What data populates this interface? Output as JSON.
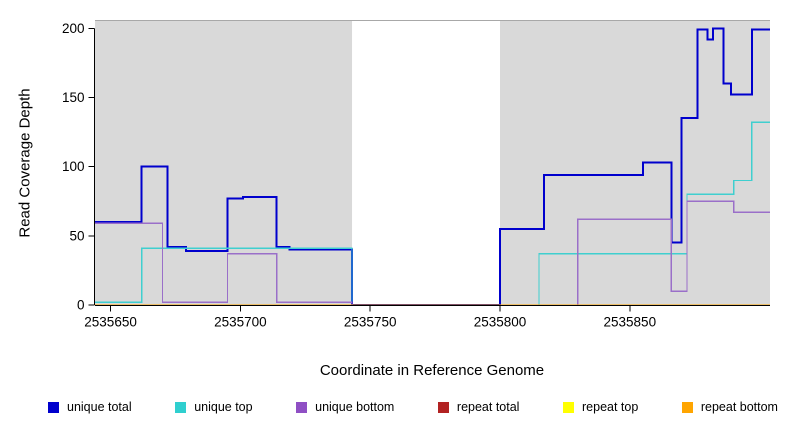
{
  "chart_data": {
    "type": "line",
    "step": true,
    "title": "",
    "xlabel": "Coordinate in Reference Genome",
    "ylabel": "Read Coverage Depth",
    "xlim": [
      2535644,
      2535904
    ],
    "ylim": [
      0,
      206
    ],
    "xticks": [
      2535650,
      2535700,
      2535750,
      2535800,
      2535850
    ],
    "yticks": [
      0,
      50,
      100,
      150,
      200
    ],
    "grid": false,
    "legend_position": "bottom",
    "background_regions": [
      {
        "x0": 2535644,
        "x1": 2535743,
        "color": "#d9d9d9"
      },
      {
        "x0": 2535800,
        "x1": 2535904,
        "color": "#d9d9d9"
      }
    ],
    "series": [
      {
        "name": "unique total",
        "color": "#0000cd",
        "width": 2,
        "points": [
          [
            2535644,
            60
          ],
          [
            2535662,
            100
          ],
          [
            2535672,
            42
          ],
          [
            2535679,
            39
          ],
          [
            2535695,
            77
          ],
          [
            2535701,
            78
          ],
          [
            2535714,
            42
          ],
          [
            2535719,
            40
          ],
          [
            2535743,
            0
          ],
          [
            2535800,
            55
          ],
          [
            2535817,
            94
          ],
          [
            2535855,
            103
          ],
          [
            2535866,
            45
          ],
          [
            2535870,
            135
          ],
          [
            2535876,
            199
          ],
          [
            2535880,
            192
          ],
          [
            2535882,
            200
          ],
          [
            2535886,
            160
          ],
          [
            2535889,
            152
          ],
          [
            2535897,
            199
          ]
        ]
      },
      {
        "name": "unique top",
        "color": "#3fcfcf",
        "width": 1.3,
        "points": [
          [
            2535644,
            2
          ],
          [
            2535662,
            41
          ],
          [
            2535743,
            0
          ],
          [
            2535815,
            37
          ],
          [
            2535872,
            80
          ],
          [
            2535890,
            90
          ],
          [
            2535897,
            132
          ]
        ]
      },
      {
        "name": "unique bottom",
        "color": "#9a6fc9",
        "width": 1.3,
        "points": [
          [
            2535644,
            59
          ],
          [
            2535670,
            2
          ],
          [
            2535695,
            37
          ],
          [
            2535714,
            2
          ],
          [
            2535743,
            0
          ],
          [
            2535830,
            62
          ],
          [
            2535866,
            10
          ],
          [
            2535872,
            75
          ],
          [
            2535890,
            67
          ]
        ]
      },
      {
        "name": "repeat total",
        "color": "#b22222",
        "width": 1.3,
        "points": [
          [
            2535644,
            0
          ]
        ]
      },
      {
        "name": "repeat top",
        "color": "#ffff00",
        "width": 1.3,
        "points": [
          [
            2535644,
            0
          ]
        ]
      },
      {
        "name": "repeat bottom",
        "color": "#ffa500",
        "width": 1.3,
        "points": [
          [
            2535644,
            0
          ]
        ]
      }
    ],
    "legend": [
      {
        "label": "unique total",
        "color": "#0000cd"
      },
      {
        "label": "unique top",
        "color": "#2fcfcf"
      },
      {
        "label": "unique bottom",
        "color": "#8f4fc4"
      },
      {
        "label": "repeat total",
        "color": "#b22222"
      },
      {
        "label": "repeat top",
        "color": "#ffff00"
      },
      {
        "label": "repeat bottom",
        "color": "#ffa500"
      }
    ]
  }
}
